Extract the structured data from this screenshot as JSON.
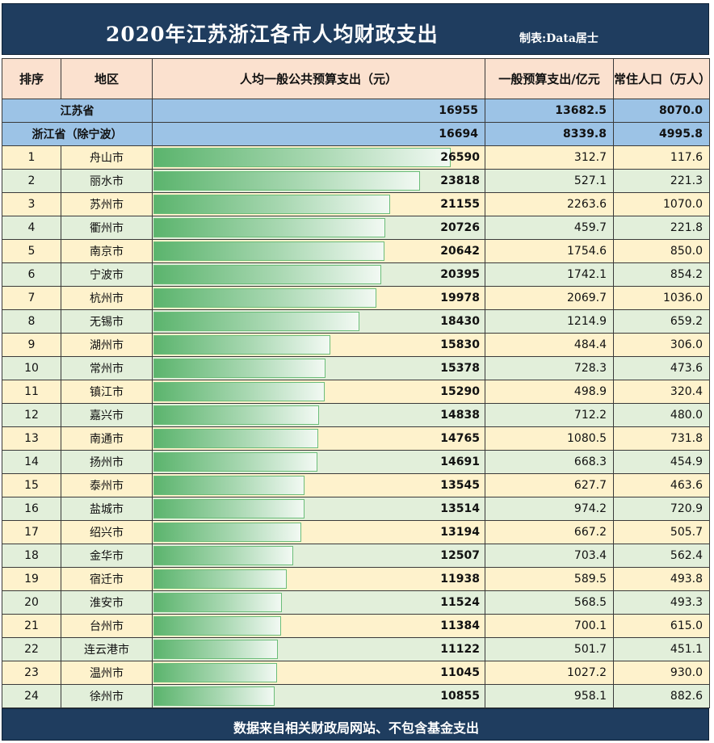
{
  "title": "2020年江苏浙江各市人均财政支出",
  "credit": "制表:Data居士",
  "footer": "数据来自相关财政局网站、不包含基金支出",
  "colors": {
    "header_bg": "#1f3d5f",
    "col_header_bg": "#fbe1cf",
    "province_bg": "#9cc3e6",
    "row_odd_bg": "#fef2cc",
    "row_even_bg": "#e2efda",
    "bar": "#5bb46d"
  },
  "columns": [
    "排序",
    "地区",
    "人均一般公共预算支出（元）",
    "一般预算支出/亿元",
    "常住人口（万人）"
  ],
  "provinces": [
    {
      "name": "江苏省",
      "per_capita": "16955",
      "budget": "13682.5",
      "population": "8070.0"
    },
    {
      "name": "浙江省（除宁波）",
      "per_capita": "16694",
      "budget": "8339.8",
      "population": "4995.8"
    }
  ],
  "chart_data": {
    "type": "table",
    "title": "2020年江苏浙江各市人均财政支出",
    "bar_column": "人均一般公共预算支出（元）",
    "bar_max": 26590,
    "rows": [
      {
        "rank": "1",
        "city": "舟山市",
        "per_capita": 26590,
        "budget": "312.7",
        "population": "117.6"
      },
      {
        "rank": "2",
        "city": "丽水市",
        "per_capita": 23818,
        "budget": "527.1",
        "population": "221.3"
      },
      {
        "rank": "3",
        "city": "苏州市",
        "per_capita": 21155,
        "budget": "2263.6",
        "population": "1070.0"
      },
      {
        "rank": "4",
        "city": "衢州市",
        "per_capita": 20726,
        "budget": "459.7",
        "population": "221.8"
      },
      {
        "rank": "5",
        "city": "南京市",
        "per_capita": 20642,
        "budget": "1754.6",
        "population": "850.0"
      },
      {
        "rank": "6",
        "city": "宁波市",
        "per_capita": 20395,
        "budget": "1742.1",
        "population": "854.2"
      },
      {
        "rank": "7",
        "city": "杭州市",
        "per_capita": 19978,
        "budget": "2069.7",
        "population": "1036.0"
      },
      {
        "rank": "8",
        "city": "无锡市",
        "per_capita": 18430,
        "budget": "1214.9",
        "population": "659.2"
      },
      {
        "rank": "9",
        "city": "湖州市",
        "per_capita": 15830,
        "budget": "484.4",
        "population": "306.0"
      },
      {
        "rank": "10",
        "city": "常州市",
        "per_capita": 15378,
        "budget": "728.3",
        "population": "473.6"
      },
      {
        "rank": "11",
        "city": "镇江市",
        "per_capita": 15290,
        "budget": "498.9",
        "population": "320.4"
      },
      {
        "rank": "12",
        "city": "嘉兴市",
        "per_capita": 14838,
        "budget": "712.2",
        "population": "480.0"
      },
      {
        "rank": "13",
        "city": "南通市",
        "per_capita": 14765,
        "budget": "1080.5",
        "population": "731.8"
      },
      {
        "rank": "14",
        "city": "扬州市",
        "per_capita": 14691,
        "budget": "668.3",
        "population": "454.9"
      },
      {
        "rank": "15",
        "city": "泰州市",
        "per_capita": 13545,
        "budget": "627.7",
        "population": "463.6"
      },
      {
        "rank": "16",
        "city": "盐城市",
        "per_capita": 13514,
        "budget": "974.2",
        "population": "720.9"
      },
      {
        "rank": "17",
        "city": "绍兴市",
        "per_capita": 13194,
        "budget": "667.2",
        "population": "505.7"
      },
      {
        "rank": "18",
        "city": "金华市",
        "per_capita": 12507,
        "budget": "703.4",
        "population": "562.4"
      },
      {
        "rank": "19",
        "city": "宿迁市",
        "per_capita": 11938,
        "budget": "589.5",
        "population": "493.8"
      },
      {
        "rank": "20",
        "city": "淮安市",
        "per_capita": 11524,
        "budget": "568.5",
        "population": "493.3"
      },
      {
        "rank": "21",
        "city": "台州市",
        "per_capita": 11384,
        "budget": "700.1",
        "population": "615.0"
      },
      {
        "rank": "22",
        "city": "连云港市",
        "per_capita": 11122,
        "budget": "501.7",
        "population": "451.1"
      },
      {
        "rank": "23",
        "city": "温州市",
        "per_capita": 11045,
        "budget": "1027.2",
        "population": "930.0"
      },
      {
        "rank": "24",
        "city": "徐州市",
        "per_capita": 10855,
        "budget": "958.1",
        "population": "882.6"
      }
    ]
  }
}
